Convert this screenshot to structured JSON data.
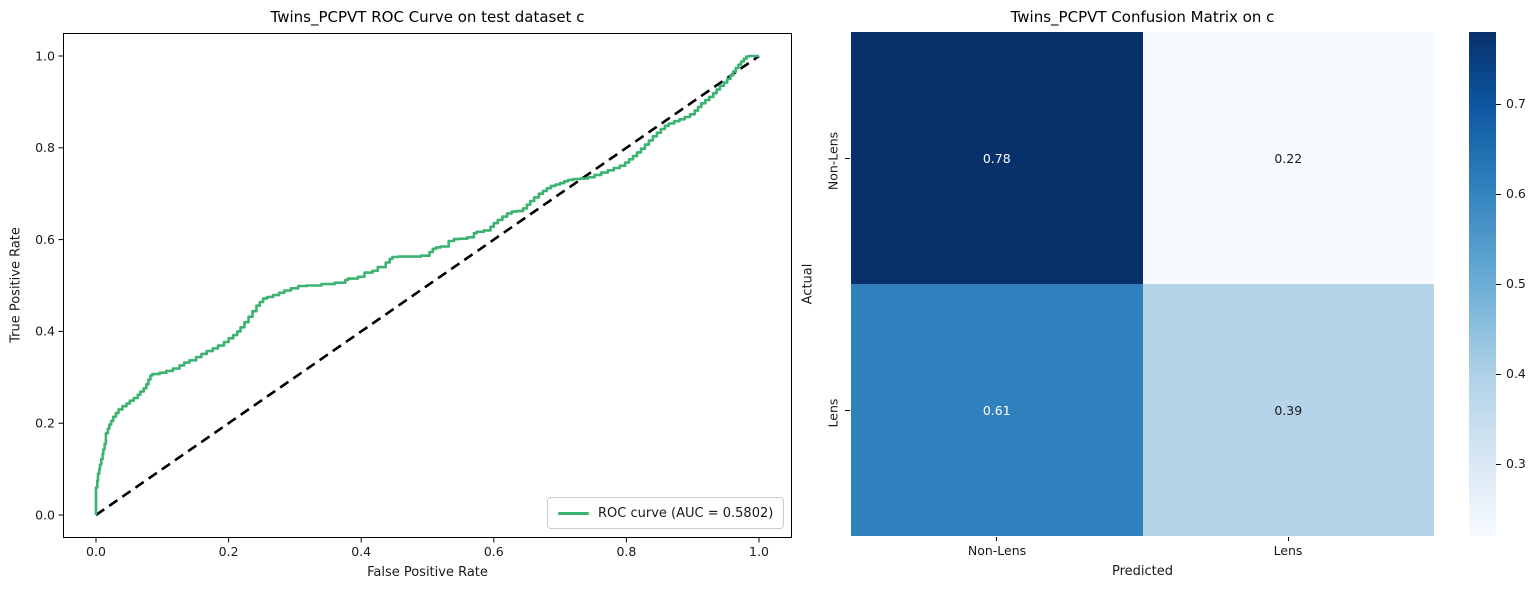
{
  "roc": {
    "title": "Twins_PCPVT ROC Curve on test dataset c",
    "xlabel": "False Positive Rate",
    "ylabel": "True Positive Rate",
    "legend": {
      "label": "ROC curve (AUC = 0.5802)",
      "line_color": "#3cb371"
    },
    "auc": "0.5802",
    "curve_color": "#3cb371",
    "diagonal_color": "#000000"
  },
  "cm": {
    "title": "Twins_PCPVT Confusion Matrix on c",
    "xlabel": "Predicted",
    "ylabel": "Actual",
    "row_labels": [
      "Non-Lens",
      "Lens"
    ],
    "col_labels": [
      "Non-Lens",
      "Lens"
    ],
    "cells": [
      {
        "value": "0.78",
        "bg": "#08306b",
        "fg": "#ffffff"
      },
      {
        "value": "0.22",
        "bg": "#f7fbff",
        "fg": "#1a1a1a"
      },
      {
        "value": "0.61",
        "bg": "#2f80bc",
        "fg": "#ffffff"
      },
      {
        "value": "0.39",
        "bg": "#b5d4e9",
        "fg": "#1a1a1a"
      }
    ]
  },
  "chart_data": [
    {
      "type": "line",
      "title": "Twins_PCPVT ROC Curve on test dataset c",
      "xlabel": "False Positive Rate",
      "ylabel": "True Positive Rate",
      "xlim": [
        0,
        1
      ],
      "ylim": [
        0,
        1
      ],
      "axes_margin": 0.05,
      "grid": false,
      "legend_position": "lower right",
      "x_ticks": {
        "values": [
          0,
          0.2,
          0.4,
          0.6,
          0.8,
          1.0
        ],
        "labels": [
          "0.0",
          "0.2",
          "0.4",
          "0.6",
          "0.8",
          "1.0"
        ]
      },
      "y_ticks": {
        "values": [
          0,
          0.2,
          0.4,
          0.6,
          0.8,
          1.0
        ],
        "labels": [
          "0.0",
          "0.2",
          "0.4",
          "0.6",
          "0.8",
          "1.0"
        ]
      },
      "series": [
        {
          "name": "ROC curve (AUC = 0.5802)",
          "color": "#3cb371",
          "line_style": "solid",
          "line_width": 2.6,
          "draw": "steps-vertical-first",
          "points": [
            [
              0.0,
              0.0
            ],
            [
              0.0,
              0.04
            ],
            [
              0.002,
              0.06
            ],
            [
              0.003,
              0.075
            ],
            [
              0.005,
              0.09
            ],
            [
              0.006,
              0.1
            ],
            [
              0.008,
              0.11
            ],
            [
              0.01,
              0.122
            ],
            [
              0.011,
              0.133
            ],
            [
              0.013,
              0.143
            ],
            [
              0.015,
              0.155
            ],
            [
              0.015,
              0.168
            ],
            [
              0.018,
              0.178
            ],
            [
              0.02,
              0.188
            ],
            [
              0.023,
              0.197
            ],
            [
              0.026,
              0.205
            ],
            [
              0.03,
              0.214
            ],
            [
              0.034,
              0.222
            ],
            [
              0.04,
              0.23
            ],
            [
              0.046,
              0.237
            ],
            [
              0.051,
              0.243
            ],
            [
              0.057,
              0.249
            ],
            [
              0.063,
              0.255
            ],
            [
              0.067,
              0.262
            ],
            [
              0.072,
              0.269
            ],
            [
              0.076,
              0.276
            ],
            [
              0.079,
              0.285
            ],
            [
              0.082,
              0.295
            ],
            [
              0.085,
              0.304
            ],
            [
              0.096,
              0.307
            ],
            [
              0.106,
              0.31
            ],
            [
              0.116,
              0.314
            ],
            [
              0.126,
              0.319
            ],
            [
              0.133,
              0.326
            ],
            [
              0.141,
              0.332
            ],
            [
              0.151,
              0.337
            ],
            [
              0.159,
              0.344
            ],
            [
              0.167,
              0.351
            ],
            [
              0.176,
              0.357
            ],
            [
              0.184,
              0.363
            ],
            [
              0.193,
              0.369
            ],
            [
              0.2,
              0.377
            ],
            [
              0.207,
              0.385
            ],
            [
              0.213,
              0.392
            ],
            [
              0.218,
              0.4
            ],
            [
              0.224,
              0.409
            ],
            [
              0.23,
              0.42
            ],
            [
              0.236,
              0.432
            ],
            [
              0.242,
              0.444
            ],
            [
              0.247,
              0.456
            ],
            [
              0.252,
              0.464
            ],
            [
              0.258,
              0.472
            ],
            [
              0.267,
              0.475
            ],
            [
              0.276,
              0.479
            ],
            [
              0.284,
              0.484
            ],
            [
              0.294,
              0.489
            ],
            [
              0.305,
              0.494
            ],
            [
              0.318,
              0.499
            ],
            [
              0.34,
              0.5
            ],
            [
              0.36,
              0.503
            ],
            [
              0.376,
              0.506
            ],
            [
              0.38,
              0.512
            ],
            [
              0.395,
              0.515
            ],
            [
              0.405,
              0.519
            ],
            [
              0.417,
              0.528
            ],
            [
              0.425,
              0.532
            ],
            [
              0.437,
              0.54
            ],
            [
              0.443,
              0.55
            ],
            [
              0.447,
              0.558
            ],
            [
              0.455,
              0.562
            ],
            [
              0.47,
              0.563
            ],
            [
              0.49,
              0.563
            ],
            [
              0.503,
              0.565
            ],
            [
              0.508,
              0.573
            ],
            [
              0.513,
              0.58
            ],
            [
              0.52,
              0.583
            ],
            [
              0.532,
              0.585
            ],
            [
              0.54,
              0.597
            ],
            [
              0.548,
              0.601
            ],
            [
              0.56,
              0.602
            ],
            [
              0.57,
              0.605
            ],
            [
              0.574,
              0.614
            ],
            [
              0.585,
              0.617
            ],
            [
              0.595,
              0.62
            ],
            [
              0.6,
              0.628
            ],
            [
              0.606,
              0.636
            ],
            [
              0.613,
              0.643
            ],
            [
              0.62,
              0.65
            ],
            [
              0.627,
              0.657
            ],
            [
              0.634,
              0.661
            ],
            [
              0.644,
              0.662
            ],
            [
              0.65,
              0.668
            ],
            [
              0.655,
              0.676
            ],
            [
              0.661,
              0.684
            ],
            [
              0.668,
              0.692
            ],
            [
              0.674,
              0.7
            ],
            [
              0.68,
              0.706
            ],
            [
              0.686,
              0.712
            ],
            [
              0.693,
              0.717
            ],
            [
              0.7,
              0.72
            ],
            [
              0.706,
              0.723
            ],
            [
              0.712,
              0.727
            ],
            [
              0.72,
              0.73
            ],
            [
              0.73,
              0.732
            ],
            [
              0.742,
              0.733
            ],
            [
              0.752,
              0.736
            ],
            [
              0.762,
              0.741
            ],
            [
              0.772,
              0.746
            ],
            [
              0.781,
              0.751
            ],
            [
              0.79,
              0.756
            ],
            [
              0.798,
              0.761
            ],
            [
              0.804,
              0.768
            ],
            [
              0.81,
              0.775
            ],
            [
              0.816,
              0.782
            ],
            [
              0.822,
              0.79
            ],
            [
              0.828,
              0.798
            ],
            [
              0.834,
              0.807
            ],
            [
              0.84,
              0.816
            ],
            [
              0.846,
              0.825
            ],
            [
              0.852,
              0.833
            ],
            [
              0.858,
              0.841
            ],
            [
              0.864,
              0.848
            ],
            [
              0.872,
              0.853
            ],
            [
              0.88,
              0.858
            ],
            [
              0.888,
              0.862
            ],
            [
              0.896,
              0.867
            ],
            [
              0.903,
              0.873
            ],
            [
              0.908,
              0.881
            ],
            [
              0.913,
              0.889
            ],
            [
              0.919,
              0.897
            ],
            [
              0.925,
              0.904
            ],
            [
              0.931,
              0.911
            ],
            [
              0.936,
              0.919
            ],
            [
              0.941,
              0.927
            ],
            [
              0.947,
              0.935
            ],
            [
              0.952,
              0.942
            ],
            [
              0.957,
              0.95
            ],
            [
              0.961,
              0.958
            ],
            [
              0.965,
              0.966
            ],
            [
              0.969,
              0.974
            ],
            [
              0.973,
              0.981
            ],
            [
              0.977,
              0.988
            ],
            [
              0.981,
              0.994
            ],
            [
              0.985,
              0.999
            ],
            [
              0.99,
              1.0
            ],
            [
              1.0,
              1.0
            ]
          ]
        },
        {
          "name": "chance diagonal",
          "color": "#000000",
          "line_style": "dashed",
          "line_width": 2.6,
          "draw": "straight",
          "points": [
            [
              0,
              0
            ],
            [
              1,
              1
            ]
          ]
        }
      ]
    },
    {
      "type": "heatmap",
      "title": "Twins_PCPVT Confusion Matrix on c",
      "xlabel": "Predicted",
      "ylabel": "Actual",
      "x_categories": [
        "Non-Lens",
        "Lens"
      ],
      "y_categories": [
        "Non-Lens",
        "Lens"
      ],
      "values": [
        [
          0.78,
          0.22
        ],
        [
          0.61,
          0.39
        ]
      ],
      "colormap": "Blues",
      "vmin": 0.22,
      "vmax": 0.78,
      "colorbar": {
        "ticks": {
          "values": [
            0.7,
            0.6,
            0.5,
            0.4,
            0.3
          ],
          "labels": [
            "0.7",
            "0.6",
            "0.5",
            "0.4",
            "0.3"
          ]
        },
        "gradient": [
          {
            "pos": 0,
            "color": "#08306b"
          },
          {
            "pos": 14.3,
            "color": "#0c56a0"
          },
          {
            "pos": 32.1,
            "color": "#3484bf"
          },
          {
            "pos": 50,
            "color": "#6baed6"
          },
          {
            "pos": 67.9,
            "color": "#afd1e7"
          },
          {
            "pos": 85.7,
            "color": "#dae8f5"
          },
          {
            "pos": 100,
            "color": "#f7fbff"
          }
        ]
      }
    }
  ]
}
